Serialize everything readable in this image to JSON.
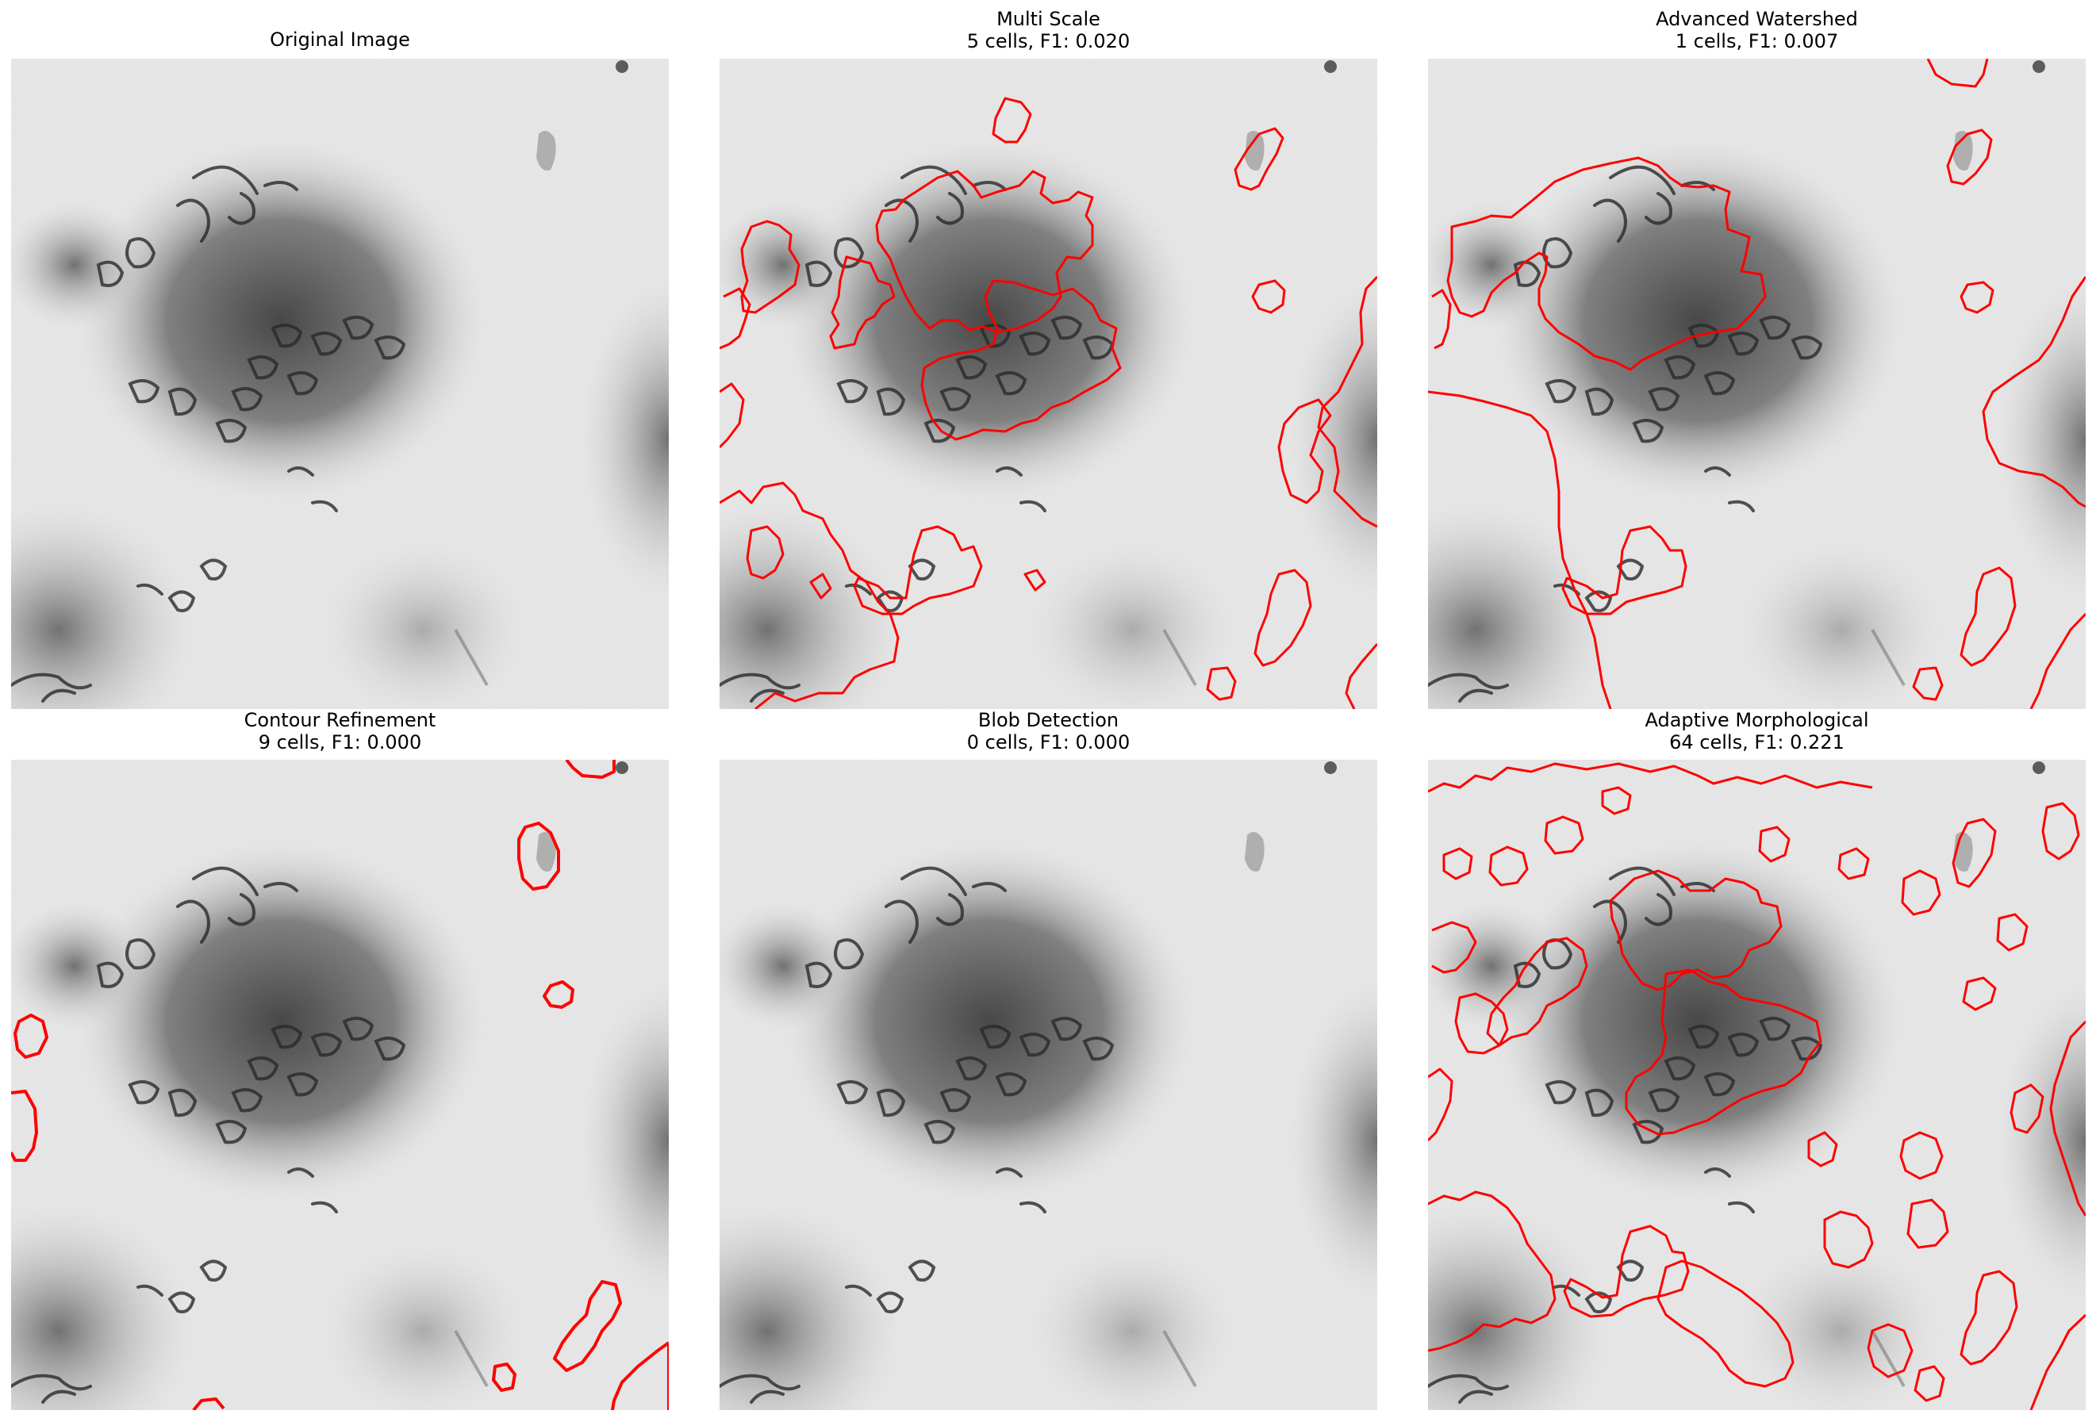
{
  "figure": {
    "panels": [
      {
        "id": "original",
        "title_lines": [
          "Original Image"
        ],
        "segments_shown": 0
      },
      {
        "id": "multi-scale",
        "title_lines": [
          "Multi Scale",
          "5 cells, F1: 0.020"
        ],
        "method": "Multi Scale",
        "cells": 5,
        "f1": 0.02
      },
      {
        "id": "advanced-watershed",
        "title_lines": [
          "Advanced Watershed",
          "1 cells, F1: 0.007"
        ],
        "method": "Advanced Watershed",
        "cells": 1,
        "f1": 0.007
      },
      {
        "id": "contour-refinement",
        "title_lines": [
          "Contour Refinement",
          "9 cells, F1: 0.000"
        ],
        "method": "Contour Refinement",
        "cells": 9,
        "f1": 0.0
      },
      {
        "id": "blob-detection",
        "title_lines": [
          "Blob Detection",
          "0 cells, F1: 0.000"
        ],
        "method": "Blob Detection",
        "cells": 0,
        "f1": 0.0
      },
      {
        "id": "adaptive-morphological",
        "title_lines": [
          "Adaptive Morphological",
          "64 cells, F1: 0.221"
        ],
        "method": "Adaptive Morphological",
        "cells": 64,
        "f1": 0.221
      }
    ],
    "colors": {
      "contour": "#ff0000",
      "background": "#eaeaea",
      "dark_region": "#555555",
      "cell_outline": "#2a2a2a"
    }
  }
}
